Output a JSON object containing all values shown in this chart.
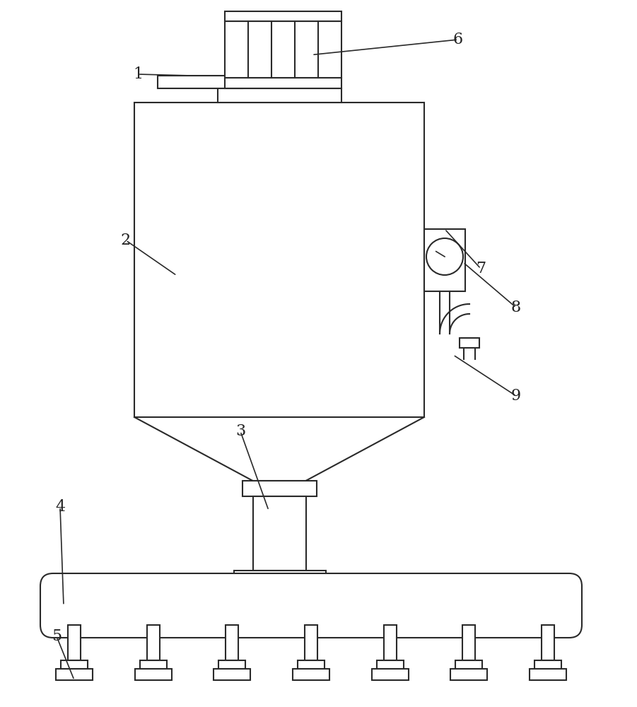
{
  "bg_color": "#ffffff",
  "line_color": "#2a2a2a",
  "line_width": 1.5,
  "label_color": "#222222",
  "fig_width": 9.01,
  "fig_height": 10.0
}
